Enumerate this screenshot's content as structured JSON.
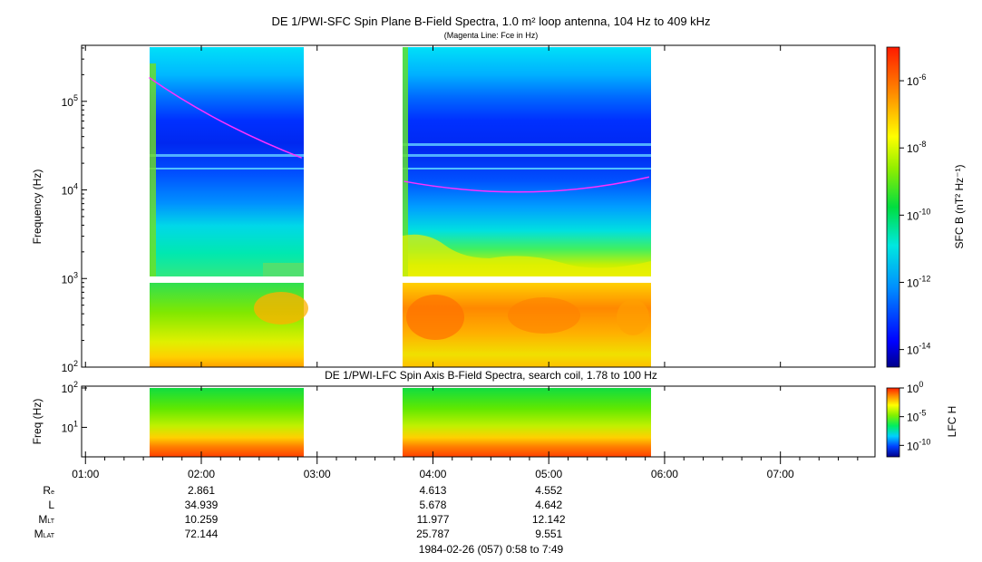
{
  "chart_data": [
    {
      "type": "heatmap",
      "title": "DE 1/PWI-SFC  Spin Plane B-Field Spectra, 1.0 m² loop antenna, 104 Hz to 409 kHz",
      "subtitle": "(Magenta Line: Fce in Hz)",
      "ylabel": "Frequency (Hz)",
      "yscale": "log",
      "ylim": [
        100,
        409000
      ],
      "ytick_labels": [
        "10^2",
        "10^3",
        "10^4",
        "10^5"
      ],
      "xlim": [
        "00:58",
        "07:49"
      ],
      "data_intervals": [
        [
          "01:32",
          "02:53"
        ],
        [
          "03:45",
          "05:53"
        ]
      ],
      "fce_line": {
        "interval1": {
          "x": [
            "01:33",
            "02:10",
            "02:52"
          ],
          "y": [
            185000,
            60000,
            23000
          ]
        },
        "interval2": {
          "x": [
            "03:45",
            "04:50",
            "05:52"
          ],
          "y": [
            12500,
            9500,
            14000
          ]
        }
      },
      "colorbar": {
        "label": "SFC B (nT² Hz⁻¹)",
        "scale": "log",
        "range": [
          3e-15,
          1e-05
        ],
        "tick_labels": [
          "10^-14",
          "10^-12",
          "10^-10",
          "10^-8",
          "10^-6"
        ]
      }
    },
    {
      "type": "heatmap",
      "title": "DE 1/PWI-LFC  Spin Axis B-Field Spectra, search coil, 1.78 to 100 Hz",
      "ylabel": "Freq (Hz)",
      "yscale": "log",
      "ylim": [
        1.78,
        100
      ],
      "ytick_labels": [
        "10^1",
        "10^2"
      ],
      "xlim": [
        "00:58",
        "07:49"
      ],
      "data_intervals": [
        [
          "01:32",
          "02:53"
        ],
        [
          "03:45",
          "05:53"
        ]
      ],
      "colorbar": {
        "label": "LFC H",
        "scale": "log",
        "range": [
          1e-12,
          1
        ],
        "tick_labels": [
          "10^-10",
          "10^-5",
          "10^0"
        ]
      }
    }
  ],
  "x_axis": {
    "tick_labels": [
      "01:00",
      "02:00",
      "03:00",
      "04:00",
      "05:00",
      "06:00",
      "07:00"
    ]
  },
  "ephemeris": {
    "labels": [
      "R",
      "L",
      "M",
      "M"
    ],
    "label_subs": [
      "e",
      "",
      "LT",
      "LAT"
    ],
    "columns": [
      {
        "time": "02:00",
        "values": [
          "2.861",
          "34.939",
          "10.259",
          "72.144"
        ]
      },
      {
        "time": "04:00",
        "values": [
          "4.613",
          "5.678",
          "11.977",
          "25.787"
        ]
      },
      {
        "time": "05:00",
        "values": [
          "4.552",
          "4.642",
          "12.142",
          "9.551"
        ]
      }
    ]
  },
  "footer": "1984-02-26 (057) 0:58 to 7:49",
  "colors": {
    "fce_line": "#ff30ff",
    "background": "#ffffff",
    "axis": "#000000"
  }
}
